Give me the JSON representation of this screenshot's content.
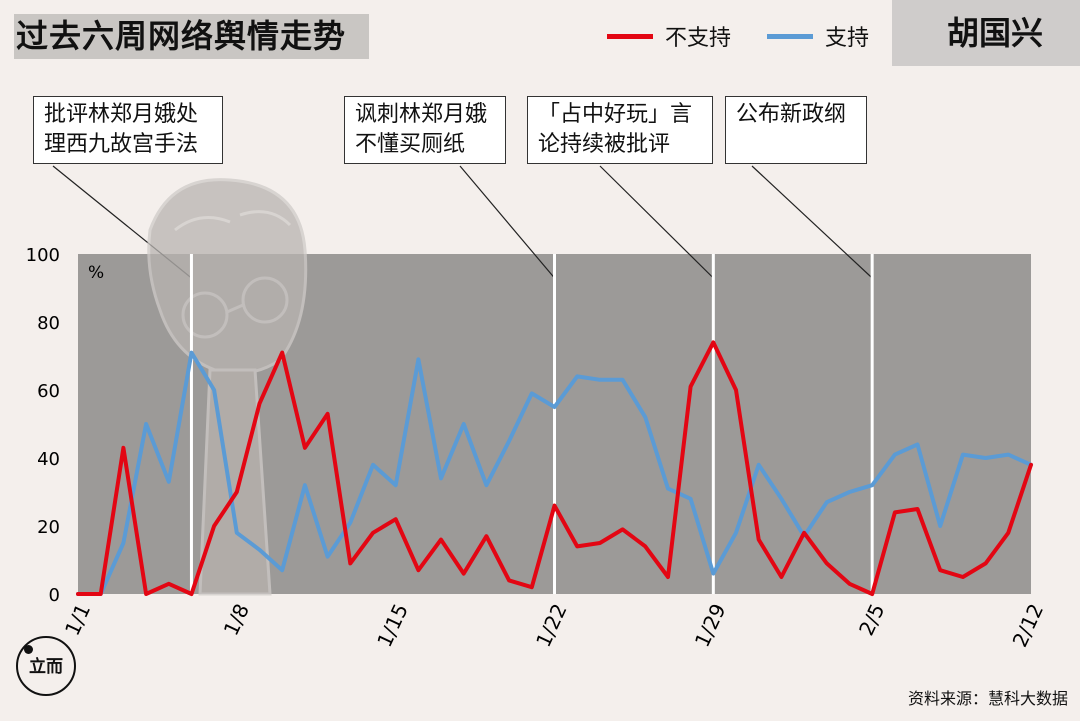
{
  "header": {
    "title": "过去六周网络舆情走势",
    "person": "胡国兴"
  },
  "legend": [
    {
      "label": "不支持",
      "color": "#e30613"
    },
    {
      "label": "支持",
      "color": "#5b9bd5"
    }
  ],
  "events": [
    {
      "line1": "批评林郑月娥处",
      "line2": "理西九故宫手法"
    },
    {
      "line1": "讽刺林郑月娥",
      "line2": "不懂买厕纸"
    },
    {
      "line1": "「占中好玩」言",
      "line2": "论持续被批评"
    },
    {
      "line1": "公布新政纲",
      "line2": ""
    }
  ],
  "source": "资料来源：慧科大数据",
  "logo_text": "立而",
  "chart_data": {
    "type": "line",
    "ylabel": "%",
    "ylim": [
      0,
      100
    ],
    "yticks": [
      "0",
      "20",
      "40",
      "60",
      "80",
      "100"
    ],
    "xtick_labels": [
      "1/1",
      "1/8",
      "1/15",
      "1/22",
      "1/29",
      "2/5",
      "2/12"
    ],
    "grid": false,
    "legend_position": "top-right",
    "event_markers": [
      "1/6",
      "1/22",
      "1/29",
      "2/5"
    ],
    "x": [
      "1/1",
      "1/2",
      "1/3",
      "1/4",
      "1/5",
      "1/6",
      "1/7",
      "1/8",
      "1/9",
      "1/10",
      "1/11",
      "1/12",
      "1/13",
      "1/14",
      "1/15",
      "1/16",
      "1/17",
      "1/18",
      "1/19",
      "1/20",
      "1/21",
      "1/22",
      "1/23",
      "1/24",
      "1/25",
      "1/26",
      "1/27",
      "1/28",
      "1/29",
      "1/30",
      "1/31",
      "2/1",
      "2/2",
      "2/3",
      "2/4",
      "2/5",
      "2/6",
      "2/7",
      "2/8",
      "2/9",
      "2/10",
      "2/11",
      "2/12"
    ],
    "series": [
      {
        "name": "不支持",
        "color": "#e30613",
        "values": [
          0,
          0,
          43,
          0,
          3,
          0,
          20,
          30,
          56,
          71,
          43,
          53,
          9,
          18,
          22,
          7,
          16,
          6,
          17,
          4,
          2,
          26,
          14,
          15,
          19,
          14,
          5,
          61,
          74,
          60,
          16,
          5,
          18,
          9,
          3,
          0,
          24,
          25,
          7,
          5,
          9,
          18,
          38
        ]
      },
      {
        "name": "支持",
        "color": "#5b9bd5",
        "values": [
          0,
          0,
          15,
          50,
          33,
          71,
          60,
          18,
          13,
          7,
          32,
          11,
          21,
          38,
          32,
          69,
          34,
          50,
          32,
          45,
          59,
          55,
          64,
          63,
          63,
          52,
          31,
          28,
          6,
          18,
          38,
          28,
          17,
          27,
          30,
          32,
          41,
          44,
          20,
          41,
          40,
          41,
          38
        ]
      }
    ]
  }
}
